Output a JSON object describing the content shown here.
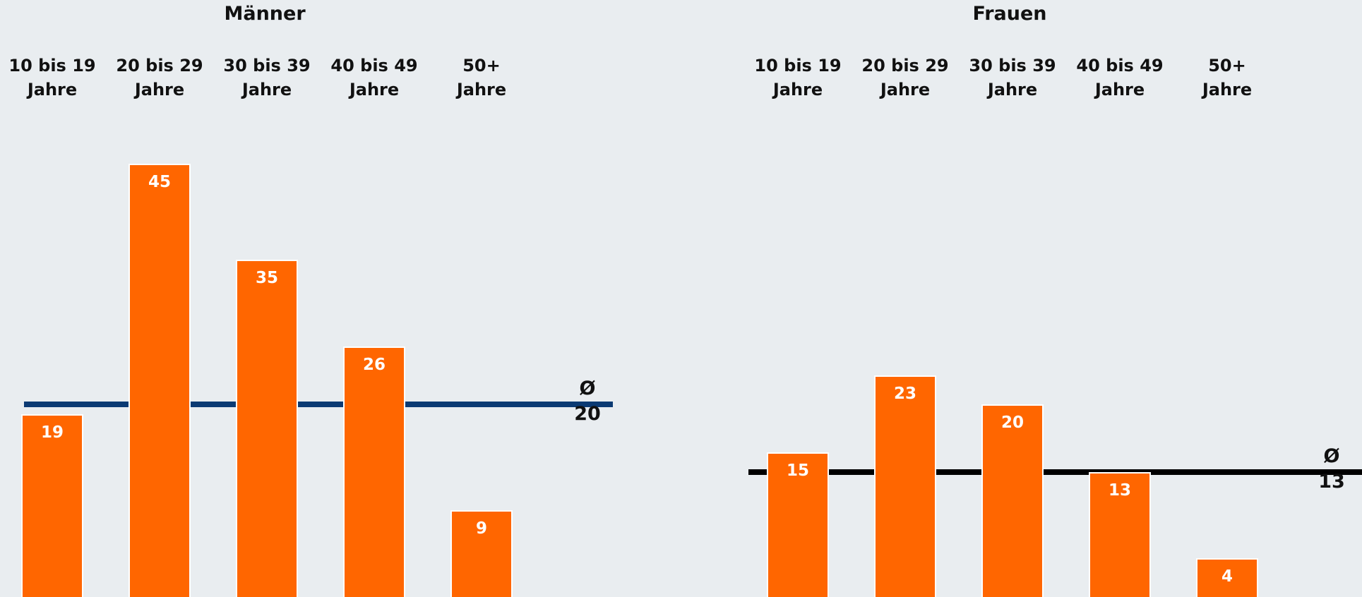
{
  "chart_data": [
    {
      "type": "bar",
      "title": "Männer",
      "categories": [
        [
          "10 bis 19",
          "Jahre"
        ],
        [
          "20 bis 29",
          "Jahre"
        ],
        [
          "30 bis 39",
          "Jahre"
        ],
        [
          "40 bis 49",
          "Jahre"
        ],
        [
          "50+",
          "Jahre"
        ]
      ],
      "values": [
        19,
        45,
        35,
        26,
        9
      ],
      "average": {
        "symbol": "Ø",
        "value": 20,
        "color": "#0b3a73"
      },
      "ylim": [
        0,
        45
      ],
      "bar_color": "#ff6600"
    },
    {
      "type": "bar",
      "title": "Frauen",
      "categories": [
        [
          "10 bis 19",
          "Jahre"
        ],
        [
          "20 bis 29",
          "Jahre"
        ],
        [
          "30 bis 39",
          "Jahre"
        ],
        [
          "40 bis 49",
          "Jahre"
        ],
        [
          "50+",
          "Jahre"
        ]
      ],
      "values": [
        15,
        23,
        20,
        13,
        4
      ],
      "average": {
        "symbol": "Ø",
        "value": 13,
        "color": "#000000"
      },
      "ylim": [
        0,
        45
      ],
      "bar_color": "#ff6600"
    }
  ]
}
